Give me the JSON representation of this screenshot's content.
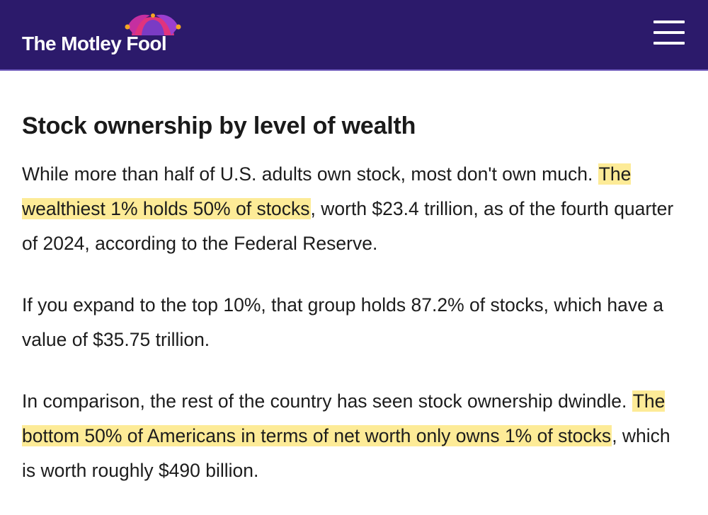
{
  "header": {
    "brand": "The Motley Fool",
    "menu_icon": "hamburger-menu-icon",
    "background": "#2c1a6b"
  },
  "article": {
    "title": "Stock ownership by level of wealth",
    "paragraphs": [
      {
        "before": "While more than half of U.S. adults own stock, most don't own much. ",
        "highlight": "The wealthiest 1% holds 50% of stocks",
        "after": ", worth $23.4 trillion, as of the fourth quarter of 2024, according to the Federal Reserve."
      },
      {
        "text": "If you expand to the top 10%, that group holds 87.2% of stocks, which have a value of $35.75 trillion."
      },
      {
        "before": "In comparison, the rest of the country has seen stock ownership dwindle. ",
        "highlight": "The bottom 50% of Americans in terms of net worth only owns 1% of stocks",
        "after": ", which is worth roughly $490 billion."
      }
    ],
    "highlight_color": "#fdeb97"
  }
}
